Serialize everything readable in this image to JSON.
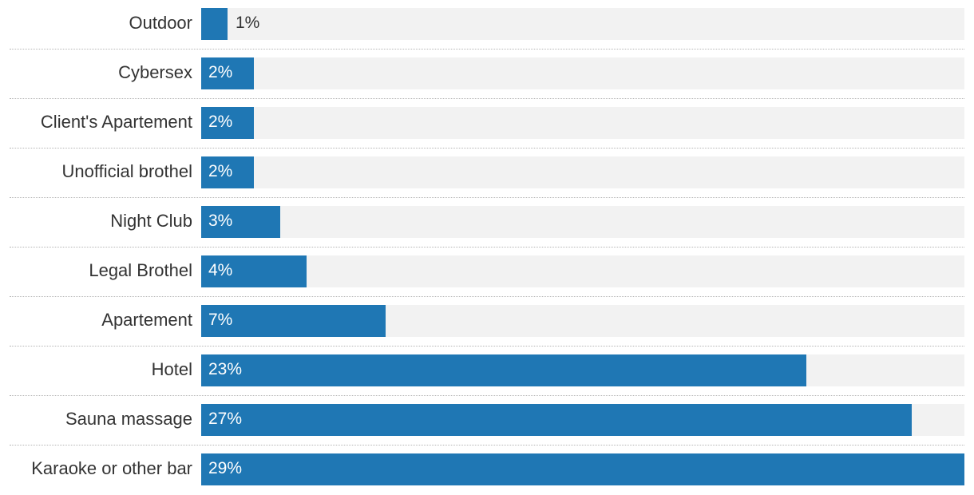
{
  "chart_data": {
    "type": "bar",
    "orientation": "horizontal",
    "title": "",
    "xlabel": "",
    "ylabel": "",
    "xlim": [
      0,
      29
    ],
    "grid": false,
    "bar_color": "#1f77b4",
    "track_color": "#f2f2f2",
    "categories": [
      "Outdoor",
      "Cybersex",
      "Client's Apartement",
      "Unofficial brothel",
      "Night Club",
      "Legal Brothel",
      "Apartement",
      "Hotel",
      "Sauna massage",
      "Karaoke or other bar"
    ],
    "values": [
      1,
      2,
      2,
      2,
      3,
      4,
      7,
      23,
      27,
      29
    ],
    "value_labels": [
      "1%",
      "2%",
      "2%",
      "2%",
      "3%",
      "4%",
      "7%",
      "23%",
      "27%",
      "29%"
    ]
  }
}
